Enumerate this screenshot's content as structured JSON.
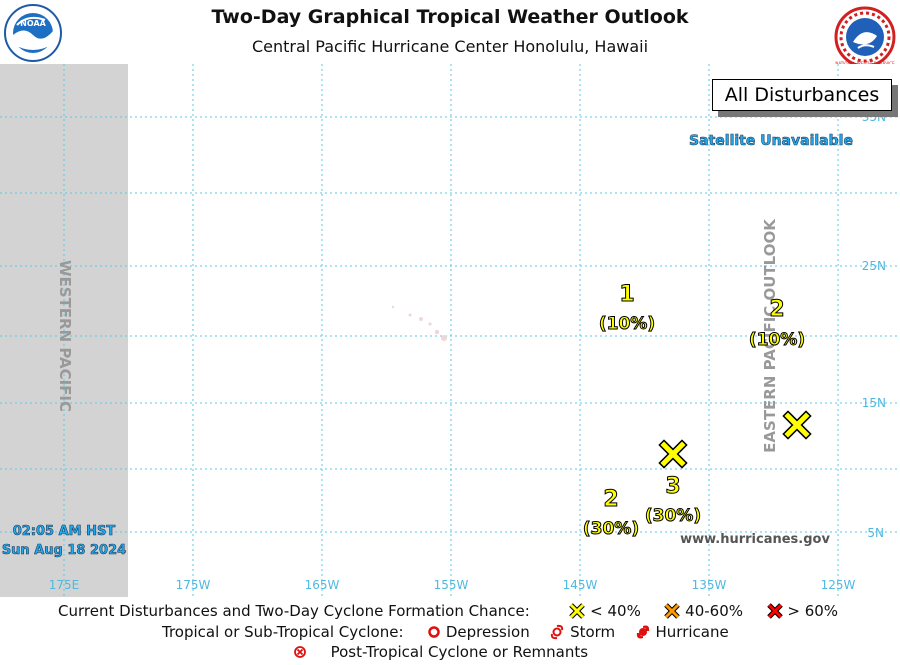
{
  "header": {
    "title": "Two-Day Graphical Tropical Weather Outlook",
    "subtitle": "Central Pacific Hurricane Center  Honolulu, Hawaii",
    "noaa_logo_text": "NOAA",
    "nws_logo_text": "NATIONAL WEATHER SERVICE"
  },
  "map": {
    "banner": "All Disturbances",
    "satellite_note": "Satellite Unavailable",
    "western_label": "WESTERN PACIFIC",
    "eastern_label": "EASTERN PACIFIC OUTLOOK",
    "timestamp_line1": "02:05 AM HST",
    "timestamp_line2": "Sun Aug 18 2024",
    "website": "www.hurricanes.gov",
    "longitude_labels": [
      "175E",
      "175W",
      "165W",
      "155W",
      "145W",
      "135W",
      "125W"
    ],
    "latitude_labels": [
      "35N",
      "25N",
      "15N",
      "5N"
    ],
    "grid_color": "#5bc8e8",
    "shaded_color": "#d3d3d3",
    "disturbance_marker_color": "#ffff00",
    "disturbances": [
      {
        "number": "1",
        "chance": "(10%)"
      },
      {
        "number": "2",
        "chance": "(10%)"
      },
      {
        "number": "2",
        "chance": "(30%)"
      },
      {
        "number": "3",
        "chance": "(30%)"
      }
    ]
  },
  "legend": {
    "row1_label": "Current Disturbances and Two-Day Cyclone Formation Chance:",
    "low": "< 40%",
    "medium": "40-60%",
    "high": "> 60%",
    "low_color": "#ffff00",
    "medium_color": "#ff9900",
    "high_color": "#ff0000",
    "row2_label": "Tropical or Sub-Tropical Cyclone:",
    "depression": "Depression",
    "storm": "Storm",
    "hurricane": "Hurricane",
    "post_tropical": "Post-Tropical Cyclone or Remnants"
  }
}
